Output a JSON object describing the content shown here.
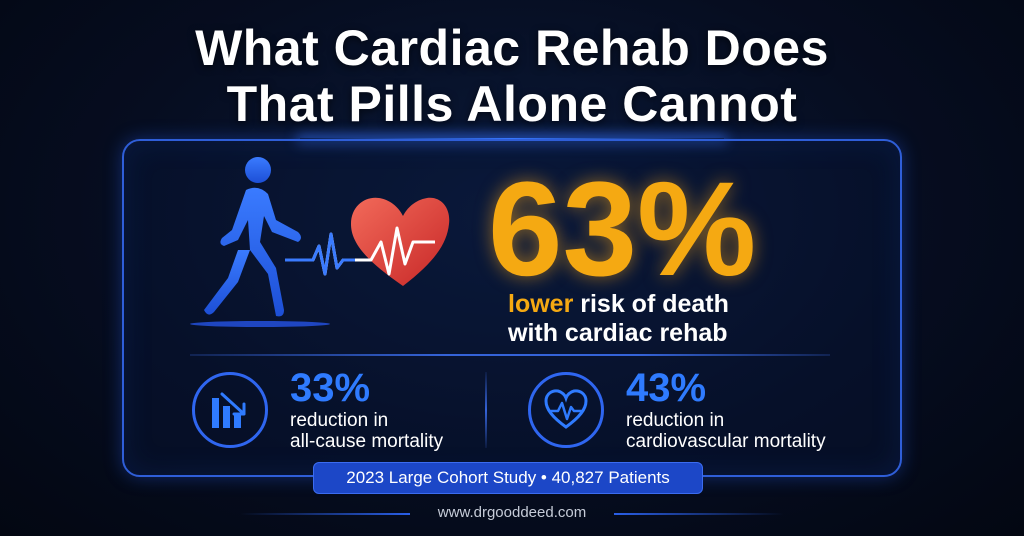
{
  "title": {
    "line1": "What Cardiac Rehab Does",
    "line2": "That Pills Alone Cannot"
  },
  "main_stat": {
    "value": "63%",
    "desc_highlight": "lower",
    "desc_rest": " risk of death",
    "desc_line2": "with cardiac rehab"
  },
  "stats": [
    {
      "value": "33%",
      "line1": "reduction in",
      "line2": "all-cause mortality",
      "icon": "bar-chart-down-icon"
    },
    {
      "value": "43%",
      "line1": "reduction in",
      "line2": "cardiovascular mortality",
      "icon": "heart-pulse-icon"
    }
  ],
  "icons": {
    "walking_person": "walking-person-icon",
    "heart_ecg": "heart-ecg-icon"
  },
  "colors": {
    "accent_orange": "#f5a912",
    "accent_blue": "#2f7bff",
    "heart_red": "#e23a3a"
  },
  "badge": "2023 Large Cohort Study • 40,827 Patients",
  "footer": "www.drgooddeed.com"
}
